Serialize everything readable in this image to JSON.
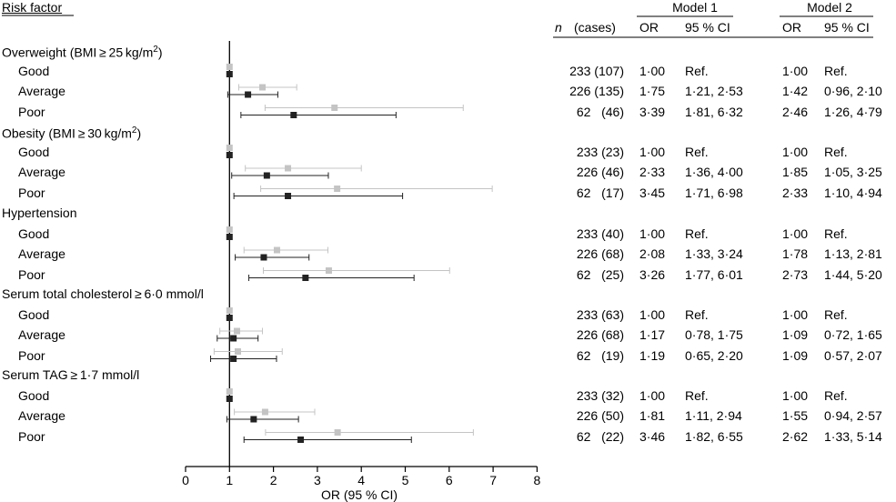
{
  "header": {
    "risk_factor": "Risk factor",
    "n_label": "n",
    "cases_label": "(cases)",
    "model1": "Model 1",
    "model2": "Model 2",
    "or_label": "OR",
    "ci_label": "95 % CI"
  },
  "chart_data": {
    "type": "forest",
    "xlabel": "OR (95 % CI)",
    "xlim": [
      0,
      8
    ],
    "xticks": [
      "0",
      "1",
      "2",
      "3",
      "4",
      "5",
      "6",
      "7",
      "8"
    ],
    "reference_line": 1,
    "legend": "Model 1 = light grey markers (upper); Model 2 = dark markers (lower)",
    "colors": {
      "model1": "#c4c4c4",
      "model2": "#222222",
      "axis": "#000000"
    },
    "groups": [
      {
        "title": "Overweight (BMI ≥ 25 kg/m",
        "sup": "2",
        "title_end": ")",
        "rows": [
          {
            "label": "Good",
            "n_cases": "233 (107)",
            "m1_or": "1·00",
            "m1_ci": "Ref.",
            "m2_or": "1·00",
            "m2_ci": "Ref.",
            "m1": [
              1.0,
              1.0,
              1.0
            ],
            "m2": [
              1.0,
              1.0,
              1.0
            ]
          },
          {
            "label": "Average",
            "n_cases": "226 (135)",
            "m1_or": "1·75",
            "m1_ci": "1·21, 2·53",
            "m2_or": "1·42",
            "m2_ci": "0·96, 2·10",
            "m1": [
              1.75,
              1.21,
              2.53
            ],
            "m2": [
              1.42,
              0.96,
              2.1
            ]
          },
          {
            "label": "Poor",
            "n_cases": "62   (46)",
            "m1_or": "3·39",
            "m1_ci": "1·81, 6·32",
            "m2_or": "2·46",
            "m2_ci": "1·26, 4·79",
            "m1": [
              3.39,
              1.81,
              6.32
            ],
            "m2": [
              2.46,
              1.26,
              4.79
            ]
          }
        ]
      },
      {
        "title": "Obesity (BMI ≥ 30 kg/m",
        "sup": "2",
        "title_end": ")",
        "rows": [
          {
            "label": "Good",
            "n_cases": "233 (23)",
            "m1_or": "1·00",
            "m1_ci": "Ref.",
            "m2_or": "1·00",
            "m2_ci": "Ref.",
            "m1": [
              1.0,
              1.0,
              1.0
            ],
            "m2": [
              1.0,
              1.0,
              1.0
            ]
          },
          {
            "label": "Average",
            "n_cases": "226 (46)",
            "m1_or": "2·33",
            "m1_ci": "1·36, 4·00",
            "m2_or": "1·85",
            "m2_ci": "1·05, 3·25",
            "m1": [
              2.33,
              1.36,
              4.0
            ],
            "m2": [
              1.85,
              1.05,
              3.25
            ]
          },
          {
            "label": "Poor",
            "n_cases": "62   (17)",
            "m1_or": "3·45",
            "m1_ci": "1·71, 6·98",
            "m2_or": "2·33",
            "m2_ci": "1·10, 4·94",
            "m1": [
              3.45,
              1.71,
              6.98
            ],
            "m2": [
              2.33,
              1.1,
              4.94
            ]
          }
        ]
      },
      {
        "title": "Hypertension",
        "sup": "",
        "title_end": "",
        "rows": [
          {
            "label": "Good",
            "n_cases": "233 (40)",
            "m1_or": "1·00",
            "m1_ci": "Ref.",
            "m2_or": "1·00",
            "m2_ci": "Ref.",
            "m1": [
              1.0,
              1.0,
              1.0
            ],
            "m2": [
              1.0,
              1.0,
              1.0
            ]
          },
          {
            "label": "Average",
            "n_cases": "226 (68)",
            "m1_or": "2·08",
            "m1_ci": "1·33, 3·24",
            "m2_or": "1·78",
            "m2_ci": "1·13, 2·81",
            "m1": [
              2.08,
              1.33,
              3.24
            ],
            "m2": [
              1.78,
              1.13,
              2.81
            ]
          },
          {
            "label": "Poor",
            "n_cases": "62   (25)",
            "m1_or": "3·26",
            "m1_ci": "1·77, 6·01",
            "m2_or": "2·73",
            "m2_ci": "1·44, 5·20",
            "m1": [
              3.26,
              1.77,
              6.01
            ],
            "m2": [
              2.73,
              1.44,
              5.2
            ]
          }
        ]
      },
      {
        "title": "Serum total cholesterol ≥ 6·0 mmol/l",
        "sup": "",
        "title_end": "",
        "rows": [
          {
            "label": "Good",
            "n_cases": "233 (63)",
            "m1_or": "1·00",
            "m1_ci": "Ref.",
            "m2_or": "1·00",
            "m2_ci": "Ref.",
            "m1": [
              1.0,
              1.0,
              1.0
            ],
            "m2": [
              1.0,
              1.0,
              1.0
            ]
          },
          {
            "label": "Average",
            "n_cases": "226 (68)",
            "m1_or": "1·17",
            "m1_ci": "0·78, 1·75",
            "m2_or": "1·09",
            "m2_ci": "0·72, 1·65",
            "m1": [
              1.17,
              0.78,
              1.75
            ],
            "m2": [
              1.09,
              0.72,
              1.65
            ]
          },
          {
            "label": "Poor",
            "n_cases": "62   (19)",
            "m1_or": "1·19",
            "m1_ci": "0·65, 2·20",
            "m2_or": "1·09",
            "m2_ci": "0·57, 2·07",
            "m1": [
              1.19,
              0.65,
              2.2
            ],
            "m2": [
              1.09,
              0.57,
              2.07
            ]
          }
        ]
      },
      {
        "title": "Serum TAG ≥ 1·7 mmol/l",
        "sup": "",
        "title_end": "",
        "rows": [
          {
            "label": "Good",
            "n_cases": "233 (32)",
            "m1_or": "1·00",
            "m1_ci": "Ref.",
            "m2_or": "1·00",
            "m2_ci": "Ref.",
            "m1": [
              1.0,
              1.0,
              1.0
            ],
            "m2": [
              1.0,
              1.0,
              1.0
            ]
          },
          {
            "label": "Average",
            "n_cases": "226 (50)",
            "m1_or": "1·81",
            "m1_ci": "1·11, 2·94",
            "m2_or": "1·55",
            "m2_ci": "0·94, 2·57",
            "m1": [
              1.81,
              1.11,
              2.94
            ],
            "m2": [
              1.55,
              0.94,
              2.57
            ]
          },
          {
            "label": "Poor",
            "n_cases": "62   (22)",
            "m1_or": "3·46",
            "m1_ci": "1·82, 6·55",
            "m2_or": "2·62",
            "m2_ci": "1·33, 5·14",
            "m1": [
              3.46,
              1.82,
              6.55
            ],
            "m2": [
              2.62,
              1.33,
              5.14
            ]
          }
        ]
      }
    ]
  }
}
